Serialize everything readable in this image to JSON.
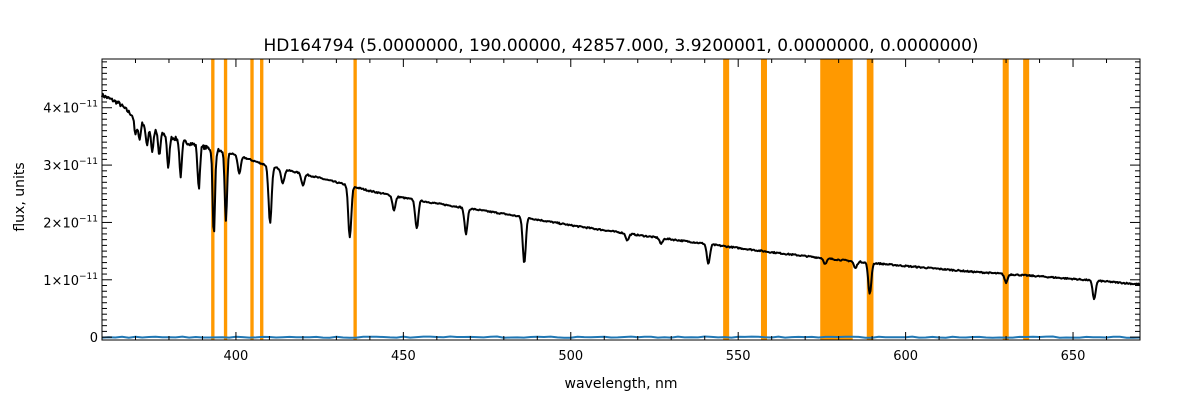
{
  "chart_data": {
    "type": "line",
    "title": "HD164794    (5.0000000, 190.00000, 42857.000, 3.9200001, 0.0000000, 0.0000000)",
    "xlabel": "wavelength, nm",
    "ylabel": "flux, units",
    "xlim": [
      360,
      670
    ],
    "ylim": [
      -5e-13,
      4.85e-11
    ],
    "grid": false,
    "x_ticks": [
      400,
      450,
      500,
      550,
      600,
      650
    ],
    "y_ticks": [
      {
        "value": 0,
        "mantissa": "0",
        "exp": ""
      },
      {
        "value": 1e-11,
        "mantissa": "1×10",
        "exp": "−11"
      },
      {
        "value": 2e-11,
        "mantissa": "2×10",
        "exp": "−11"
      },
      {
        "value": 3e-11,
        "mantissa": "3×10",
        "exp": "−11"
      },
      {
        "value": 4e-11,
        "mantissa": "4×10",
        "exp": "−11"
      }
    ],
    "masked_regions": [
      [
        392.6,
        393.6
      ],
      [
        396.4,
        397.4
      ],
      [
        404.3,
        405.3
      ],
      [
        407.2,
        408.2
      ],
      [
        435.1,
        436.1
      ],
      [
        545.5,
        547.3
      ],
      [
        556.8,
        558.6
      ],
      [
        574.5,
        584.2
      ],
      [
        588.4,
        590.4
      ],
      [
        629.0,
        630.8
      ],
      [
        635.1,
        636.9
      ]
    ],
    "series": [
      {
        "color": "#000000",
        "continuum": [
          [
            360,
            4.22e-11
          ],
          [
            365,
            4.08e-11
          ],
          [
            370,
            3.82e-11
          ],
          [
            375,
            3.62e-11
          ],
          [
            380,
            3.5e-11
          ],
          [
            385,
            3.4e-11
          ],
          [
            390,
            3.32e-11
          ],
          [
            400,
            3.18e-11
          ],
          [
            410,
            2.98e-11
          ],
          [
            420,
            2.85e-11
          ],
          [
            430,
            2.7e-11
          ],
          [
            440,
            2.55e-11
          ],
          [
            450,
            2.43e-11
          ],
          [
            460,
            2.33e-11
          ],
          [
            470,
            2.24e-11
          ],
          [
            480,
            2.15e-11
          ],
          [
            490,
            2.05e-11
          ],
          [
            500,
            1.95e-11
          ],
          [
            520,
            1.78e-11
          ],
          [
            540,
            1.63e-11
          ],
          [
            560,
            1.48e-11
          ],
          [
            575,
            1.38e-11
          ],
          [
            585,
            1.32e-11
          ],
          [
            600,
            1.24e-11
          ],
          [
            620,
            1.14e-11
          ],
          [
            640,
            1.06e-11
          ],
          [
            660,
            9.7e-12
          ],
          [
            670,
            9.2e-12
          ]
        ],
        "absorption_lines": [
          [
            370.0,
            3e-12
          ],
          [
            371.2,
            3.3e-12
          ],
          [
            373.4,
            3.5e-12
          ],
          [
            375.0,
            3.8e-12
          ],
          [
            377.1,
            4e-12
          ],
          [
            379.8,
            5.5e-12
          ],
          [
            383.5,
            6.2e-12
          ],
          [
            388.9,
            7.5e-12
          ],
          [
            393.4,
            1.5e-11
          ],
          [
            397.0,
            1.2e-11
          ],
          [
            401.0,
            3e-12
          ],
          [
            410.2,
            1e-11
          ],
          [
            414.0,
            2.5e-12
          ],
          [
            420.0,
            2e-12
          ],
          [
            434.0,
            9e-12
          ],
          [
            447.2,
            2.5e-12
          ],
          [
            454.0,
            5e-12
          ],
          [
            468.7,
            4.5e-12
          ],
          [
            486.1,
            8e-12
          ],
          [
            516.9,
            1.2e-12
          ],
          [
            527.0,
            1e-12
          ],
          [
            541.1,
            3.5e-12
          ],
          [
            576.0,
            1e-12
          ],
          [
            585.0,
            1.2e-12
          ],
          [
            589.3,
            5.5e-12
          ],
          [
            630.0,
            1.5e-12
          ],
          [
            656.3,
            3.2e-12
          ]
        ]
      },
      {
        "color": "#1f77b4",
        "level": 0.0
      }
    ]
  }
}
